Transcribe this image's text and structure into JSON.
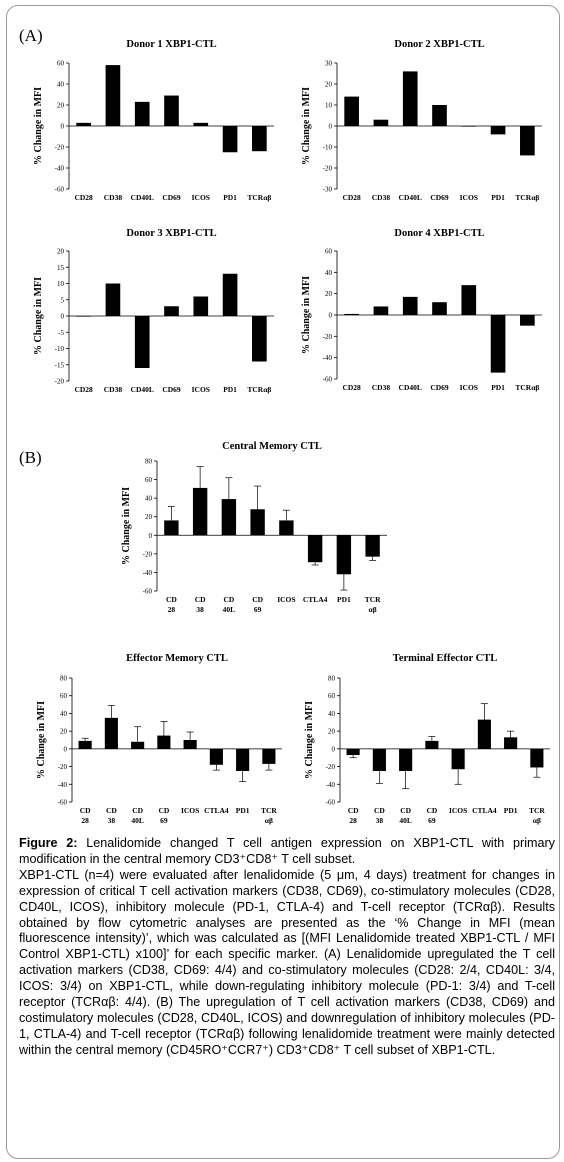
{
  "panels": {
    "a": "(A)",
    "b": "(B)"
  },
  "caption": {
    "label": "Figure 2:",
    "title": " Lenalidomide changed T cell antigen expression on XBP1-CTL with primary modification in the central memory CD3⁺CD8⁺ T cell subset.",
    "body": "XBP1-CTL (n=4) were evaluated after lenalidomide (5 μm, 4 days) treatment for changes in expression of critical T cell activation markers (CD38, CD69), co-stimulatory molecules (CD28, CD40L, ICOS), inhibitory molecule (PD-1, CTLA-4) and T-cell receptor (TCRαβ).  Results obtained by flow cytometric analyses are presented as the ‘% Change in MFI (mean fluorescence intensity)’, which was calculated as [(MFI Lenalidomide treated XBP1-CTL / MFI Control XBP1-CTL) x100]’ for each specific marker.  (A) Lenalidomide upregulated the T cell activation markers (CD38, CD69: 4/4) and co-stimulatory molecules (CD28: 2/4, CD40L: 3/4, ICOS: 3/4) on XBP1-CTL, while down-regulating inhibitory molecule (PD-1: 3/4) and T-cell receptor (TCRαβ: 4/4).  (B) The upregulation of T cell activation markers (CD38, CD69) and costimulatory molecules (CD28, CD40L, ICOS) and downregulation of inhibitory molecules (PD-1, CTLA-4) and T-cell receptor (TCRαβ) following lenalidomide treatment were mainly detected within the central memory (CD45RO⁺CCR7⁺) CD3⁺CD8⁺ T cell subset of XBP1-CTL."
  },
  "chart_data": [
    {
      "type": "bar",
      "title": "Donor 1  XBP1-CTL",
      "ylabel": "% Change in MFI",
      "categories": [
        [
          "CD28"
        ],
        [
          "CD38"
        ],
        [
          "CD40L"
        ],
        [
          "CD69"
        ],
        [
          "ICOS"
        ],
        [
          "PD1"
        ],
        [
          "TCRαβ"
        ]
      ],
      "values": [
        3,
        58,
        23,
        29,
        3,
        -25,
        -24
      ],
      "ylim": [
        -60,
        60
      ],
      "yticks": [
        -60,
        -40,
        -20,
        0,
        20,
        40,
        60
      ],
      "bar_color": "#000000"
    },
    {
      "type": "bar",
      "title": "Donor 2  XBP1-CTL",
      "ylabel": "% Change in MFI",
      "categories": [
        [
          "CD28"
        ],
        [
          "CD38"
        ],
        [
          "CD40L"
        ],
        [
          "CD69"
        ],
        [
          "ICOS"
        ],
        [
          "PD1"
        ],
        [
          "TCRαβ"
        ]
      ],
      "values": [
        14,
        3,
        26,
        10,
        0,
        -4,
        -14
      ],
      "ylim": [
        -30,
        30
      ],
      "yticks": [
        -30,
        -20,
        -10,
        0,
        10,
        20,
        30
      ],
      "bar_color": "#000000"
    },
    {
      "type": "bar",
      "title": "Donor 3  XBP1-CTL",
      "ylabel": "% Change in MFI",
      "categories": [
        [
          "CD28"
        ],
        [
          "CD38"
        ],
        [
          "CD40L"
        ],
        [
          "CD69"
        ],
        [
          "ICOS"
        ],
        [
          "PD1"
        ],
        [
          "TCRαβ"
        ]
      ],
      "values": [
        0,
        10,
        -16,
        3,
        6,
        13,
        -14
      ],
      "ylim": [
        -20,
        20
      ],
      "yticks": [
        -20,
        -15,
        -10,
        -5,
        0,
        5,
        10,
        15,
        20
      ],
      "bar_color": "#000000"
    },
    {
      "type": "bar",
      "title": "Donor 4  XBP1-CTL",
      "ylabel": "% Change in MFI",
      "categories": [
        [
          "CD28"
        ],
        [
          "CD38"
        ],
        [
          "CD40L"
        ],
        [
          "CD69"
        ],
        [
          "ICOS"
        ],
        [
          "PD1"
        ],
        [
          "TCRαβ"
        ]
      ],
      "values": [
        1,
        8,
        17,
        12,
        28,
        -54,
        -10
      ],
      "ylim": [
        -60,
        60
      ],
      "yticks": [
        -60,
        -40,
        -20,
        0,
        20,
        40,
        60
      ],
      "bar_color": "#000000"
    },
    {
      "type": "bar",
      "title": "Central Memory CTL",
      "ylabel": "% Change in MFI",
      "categories": [
        [
          "CD",
          "28"
        ],
        [
          "CD",
          "38"
        ],
        [
          "CD",
          "40L"
        ],
        [
          "CD",
          "69"
        ],
        [
          "ICOS"
        ],
        [
          "CTLA4"
        ],
        [
          "PD1"
        ],
        [
          "TCR",
          "αβ"
        ]
      ],
      "values": [
        16,
        51,
        39,
        28,
        16,
        -29,
        -42,
        -23
      ],
      "errors": [
        15,
        23,
        23,
        25,
        11,
        3,
        17,
        4
      ],
      "ylim": [
        -60,
        80
      ],
      "yticks": [
        -60,
        -40,
        -20,
        0,
        20,
        40,
        60,
        80
      ],
      "bar_color": "#000000"
    },
    {
      "type": "bar",
      "title": "Effector Memory CTL",
      "ylabel": "% Change in MFI",
      "categories": [
        [
          "CD",
          "28"
        ],
        [
          "CD",
          "38"
        ],
        [
          "CD",
          "40L"
        ],
        [
          "CD",
          "69"
        ],
        [
          "ICOS"
        ],
        [
          "CTLA4"
        ],
        [
          "PD1"
        ],
        [
          "TCR",
          "αβ"
        ]
      ],
      "values": [
        9,
        35,
        8,
        15,
        10,
        -18,
        -25,
        -17
      ],
      "errors": [
        3,
        14,
        17,
        16,
        9,
        6,
        12,
        7
      ],
      "ylim": [
        -60,
        80
      ],
      "yticks": [
        -60,
        -40,
        -20,
        0,
        20,
        40,
        60,
        80
      ],
      "bar_color": "#000000"
    },
    {
      "type": "bar",
      "title": "Terminal Effector CTL",
      "ylabel": "% Change in MFI",
      "categories": [
        [
          "CD",
          "28"
        ],
        [
          "CD",
          "38"
        ],
        [
          "CD",
          "40L"
        ],
        [
          "CD",
          "69"
        ],
        [
          "ICOS"
        ],
        [
          "CTLA4"
        ],
        [
          "PD1"
        ],
        [
          "TCR",
          "αβ"
        ]
      ],
      "values": [
        -7,
        -25,
        -25,
        9,
        -23,
        33,
        13,
        -21
      ],
      "errors": [
        3,
        14,
        20,
        5,
        17,
        18,
        7,
        11
      ],
      "ylim": [
        -60,
        80
      ],
      "yticks": [
        -60,
        -40,
        -20,
        0,
        20,
        40,
        60,
        80
      ],
      "bar_color": "#000000"
    }
  ]
}
